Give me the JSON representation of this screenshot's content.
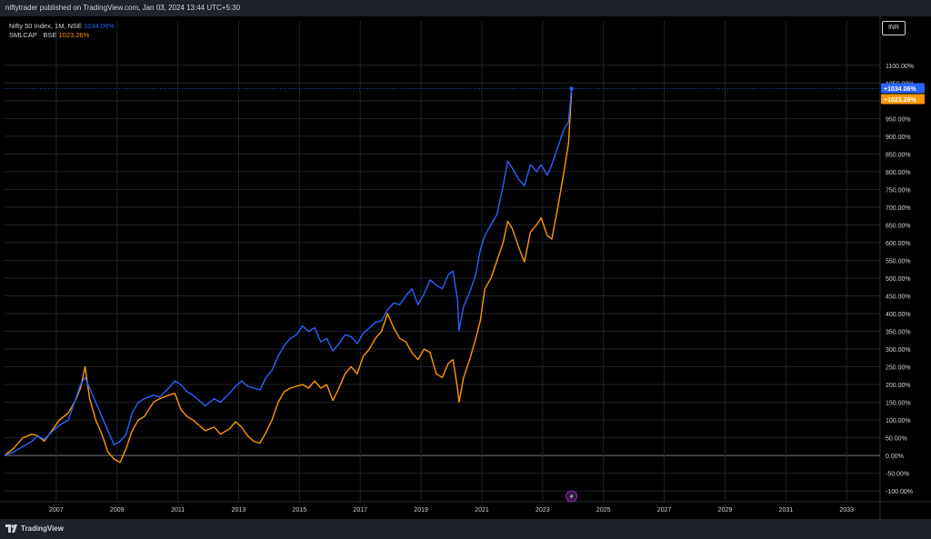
{
  "header": {
    "published": "niftytrader published on TradingView.com, Jan 03, 2024 13:44 UTC+5:30"
  },
  "legend": {
    "series1_name": "Nifty 50 Index, 1M, NSE",
    "series1_value": "1034.06%",
    "series2_name": "SMLCAP · BSE",
    "series2_value": "1023.26%"
  },
  "scale": {
    "currency": "INR"
  },
  "footer": {
    "brand": "TradingView"
  },
  "colors": {
    "nifty": "#2962ff",
    "smlcap": "#ff9800",
    "background": "#000000"
  },
  "chart_data": {
    "type": "line",
    "title": "",
    "xlabel": "",
    "ylabel": "",
    "xlim": [
      2005.3,
      2034.1
    ],
    "ylim": [
      -115,
      1225
    ],
    "x_ticks": [
      "2007",
      "2009",
      "2011",
      "2013",
      "2015",
      "2017",
      "2019",
      "2021",
      "2023",
      "2025",
      "2027",
      "2029",
      "2031",
      "2033"
    ],
    "y_ticks": [
      "1100.00%",
      "1050.00%",
      "1000.00%",
      "950.00%",
      "900.00%",
      "850.00%",
      "800.00%",
      "750.00%",
      "700.00%",
      "650.00%",
      "600.00%",
      "550.00%",
      "500.00%",
      "450.00%",
      "400.00%",
      "350.00%",
      "300.00%",
      "250.00%",
      "200.00%",
      "150.00%",
      "100.00%",
      "50.00%",
      "0.00%",
      "-50.00%",
      "-100.00%"
    ],
    "grid": true,
    "legend": "top-left",
    "series": [
      {
        "name": "Nifty 50 Index, 1M, NSE",
        "last_label": "+1034.06%",
        "points": [
          [
            2005.3,
            0
          ],
          [
            2005.6,
            10
          ],
          [
            2005.9,
            25
          ],
          [
            2006.2,
            40
          ],
          [
            2006.4,
            55
          ],
          [
            2006.6,
            45
          ],
          [
            2006.9,
            70
          ],
          [
            2007.1,
            85
          ],
          [
            2007.4,
            100
          ],
          [
            2007.6,
            150
          ],
          [
            2007.8,
            200
          ],
          [
            2007.95,
            220
          ],
          [
            2008.1,
            190
          ],
          [
            2008.3,
            150
          ],
          [
            2008.5,
            110
          ],
          [
            2008.7,
            70
          ],
          [
            2008.9,
            30
          ],
          [
            2009.1,
            40
          ],
          [
            2009.3,
            60
          ],
          [
            2009.5,
            120
          ],
          [
            2009.7,
            150
          ],
          [
            2009.9,
            160
          ],
          [
            2010.2,
            170
          ],
          [
            2010.4,
            165
          ],
          [
            2010.7,
            190
          ],
          [
            2010.9,
            210
          ],
          [
            2011.1,
            200
          ],
          [
            2011.3,
            180
          ],
          [
            2011.5,
            170
          ],
          [
            2011.7,
            155
          ],
          [
            2011.9,
            140
          ],
          [
            2012.2,
            160
          ],
          [
            2012.4,
            150
          ],
          [
            2012.7,
            175
          ],
          [
            2012.9,
            195
          ],
          [
            2013.1,
            210
          ],
          [
            2013.3,
            195
          ],
          [
            2013.5,
            190
          ],
          [
            2013.7,
            185
          ],
          [
            2013.9,
            220
          ],
          [
            2014.1,
            240
          ],
          [
            2014.3,
            280
          ],
          [
            2014.5,
            310
          ],
          [
            2014.7,
            330
          ],
          [
            2014.9,
            340
          ],
          [
            2015.1,
            365
          ],
          [
            2015.3,
            350
          ],
          [
            2015.5,
            360
          ],
          [
            2015.7,
            320
          ],
          [
            2015.9,
            330
          ],
          [
            2016.1,
            295
          ],
          [
            2016.3,
            315
          ],
          [
            2016.5,
            340
          ],
          [
            2016.7,
            335
          ],
          [
            2016.9,
            315
          ],
          [
            2017.1,
            345
          ],
          [
            2017.3,
            360
          ],
          [
            2017.5,
            375
          ],
          [
            2017.7,
            380
          ],
          [
            2017.9,
            410
          ],
          [
            2018.1,
            430
          ],
          [
            2018.3,
            425
          ],
          [
            2018.5,
            450
          ],
          [
            2018.7,
            470
          ],
          [
            2018.9,
            425
          ],
          [
            2019.1,
            455
          ],
          [
            2019.3,
            495
          ],
          [
            2019.5,
            480
          ],
          [
            2019.7,
            470
          ],
          [
            2019.9,
            510
          ],
          [
            2020.05,
            520
          ],
          [
            2020.2,
            440
          ],
          [
            2020.25,
            352
          ],
          [
            2020.4,
            420
          ],
          [
            2020.6,
            460
          ],
          [
            2020.8,
            510
          ],
          [
            2020.95,
            580
          ],
          [
            2021.1,
            620
          ],
          [
            2021.3,
            650
          ],
          [
            2021.5,
            680
          ],
          [
            2021.7,
            760
          ],
          [
            2021.85,
            830
          ],
          [
            2022.0,
            810
          ],
          [
            2022.2,
            780
          ],
          [
            2022.4,
            760
          ],
          [
            2022.6,
            820
          ],
          [
            2022.8,
            800
          ],
          [
            2022.95,
            820
          ],
          [
            2023.15,
            790
          ],
          [
            2023.3,
            820
          ],
          [
            2023.5,
            870
          ],
          [
            2023.7,
            920
          ],
          [
            2023.85,
            940
          ],
          [
            2023.95,
            1034.06
          ]
        ]
      },
      {
        "name": "SMLCAP · BSE",
        "last_label": "+1023.26%",
        "points": [
          [
            2005.3,
            0
          ],
          [
            2005.6,
            20
          ],
          [
            2005.9,
            50
          ],
          [
            2006.2,
            60
          ],
          [
            2006.4,
            55
          ],
          [
            2006.6,
            40
          ],
          [
            2006.9,
            75
          ],
          [
            2007.1,
            100
          ],
          [
            2007.4,
            120
          ],
          [
            2007.6,
            150
          ],
          [
            2007.8,
            190
          ],
          [
            2007.95,
            250
          ],
          [
            2008.1,
            160
          ],
          [
            2008.3,
            100
          ],
          [
            2008.5,
            60
          ],
          [
            2008.7,
            10
          ],
          [
            2008.9,
            -10
          ],
          [
            2009.1,
            -20
          ],
          [
            2009.3,
            20
          ],
          [
            2009.5,
            70
          ],
          [
            2009.7,
            100
          ],
          [
            2009.9,
            110
          ],
          [
            2010.2,
            150
          ],
          [
            2010.4,
            160
          ],
          [
            2010.7,
            170
          ],
          [
            2010.9,
            175
          ],
          [
            2011.1,
            130
          ],
          [
            2011.3,
            110
          ],
          [
            2011.5,
            100
          ],
          [
            2011.7,
            85
          ],
          [
            2011.9,
            70
          ],
          [
            2012.2,
            80
          ],
          [
            2012.4,
            60
          ],
          [
            2012.7,
            75
          ],
          [
            2012.9,
            95
          ],
          [
            2013.1,
            80
          ],
          [
            2013.3,
            55
          ],
          [
            2013.5,
            40
          ],
          [
            2013.7,
            35
          ],
          [
            2013.9,
            65
          ],
          [
            2014.1,
            100
          ],
          [
            2014.3,
            150
          ],
          [
            2014.5,
            180
          ],
          [
            2014.7,
            190
          ],
          [
            2014.9,
            195
          ],
          [
            2015.1,
            200
          ],
          [
            2015.3,
            190
          ],
          [
            2015.5,
            210
          ],
          [
            2015.7,
            190
          ],
          [
            2015.9,
            200
          ],
          [
            2016.1,
            155
          ],
          [
            2016.3,
            190
          ],
          [
            2016.5,
            230
          ],
          [
            2016.7,
            250
          ],
          [
            2016.9,
            230
          ],
          [
            2017.1,
            280
          ],
          [
            2017.3,
            300
          ],
          [
            2017.5,
            330
          ],
          [
            2017.7,
            350
          ],
          [
            2017.9,
            400
          ],
          [
            2018.1,
            360
          ],
          [
            2018.3,
            330
          ],
          [
            2018.5,
            320
          ],
          [
            2018.7,
            290
          ],
          [
            2018.9,
            270
          ],
          [
            2019.1,
            300
          ],
          [
            2019.3,
            290
          ],
          [
            2019.5,
            230
          ],
          [
            2019.7,
            220
          ],
          [
            2019.9,
            260
          ],
          [
            2020.05,
            270
          ],
          [
            2020.2,
            190
          ],
          [
            2020.25,
            150
          ],
          [
            2020.4,
            220
          ],
          [
            2020.6,
            270
          ],
          [
            2020.8,
            330
          ],
          [
            2020.95,
            380
          ],
          [
            2021.1,
            470
          ],
          [
            2021.3,
            500
          ],
          [
            2021.5,
            550
          ],
          [
            2021.7,
            600
          ],
          [
            2021.85,
            660
          ],
          [
            2022.0,
            640
          ],
          [
            2022.2,
            590
          ],
          [
            2022.4,
            545
          ],
          [
            2022.6,
            630
          ],
          [
            2022.8,
            650
          ],
          [
            2022.95,
            670
          ],
          [
            2023.15,
            620
          ],
          [
            2023.3,
            610
          ],
          [
            2023.5,
            700
          ],
          [
            2023.7,
            800
          ],
          [
            2023.85,
            880
          ],
          [
            2023.95,
            1023.26
          ]
        ]
      }
    ]
  }
}
